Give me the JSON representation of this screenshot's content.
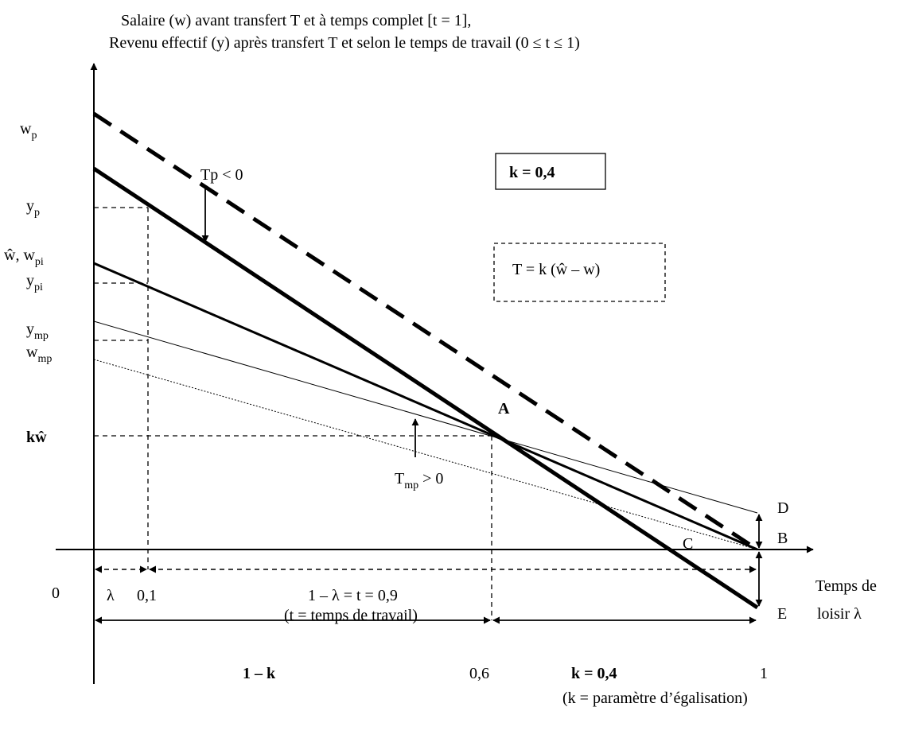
{
  "header": {
    "line1": "Salaire (w) avant transfert T et à temps complet [t = 1],",
    "line2": "Revenu effectif (y) après transfert T et selon le temps de travail (0 ≤ t ≤ 1)"
  },
  "y_axis": {
    "w": "w",
    "p": "p",
    "y": "y",
    "pi": "pi",
    "mp": "mp",
    "what_wpi_prefix": "ŵ, w",
    "kw": "kŵ",
    "zero": "0"
  },
  "x_axis": {
    "lambda": "λ",
    "x01": "0,1",
    "x06": "0,6",
    "x1": "1",
    "x_title_1": "Temps de",
    "x_title_2": "loisir λ"
  },
  "boxes": {
    "k_value": "k = 0,4",
    "transfer_formula": "T = k (ŵ – w)"
  },
  "annotations": {
    "tp": "Tp < 0",
    "tmp_T": "T",
    "tmp_rest": " > 0",
    "pt_A": "A",
    "pt_B": "B",
    "pt_C": "C",
    "pt_D": "D",
    "pt_E": "E",
    "one_minus_lambda": "1 –  λ = t = 0,9",
    "t_def": "(t = temps de travail)",
    "one_minus_k": "1 – k",
    "k_eq": "k = 0,4",
    "k_def": "(k = paramètre d’égalisation)"
  }
}
